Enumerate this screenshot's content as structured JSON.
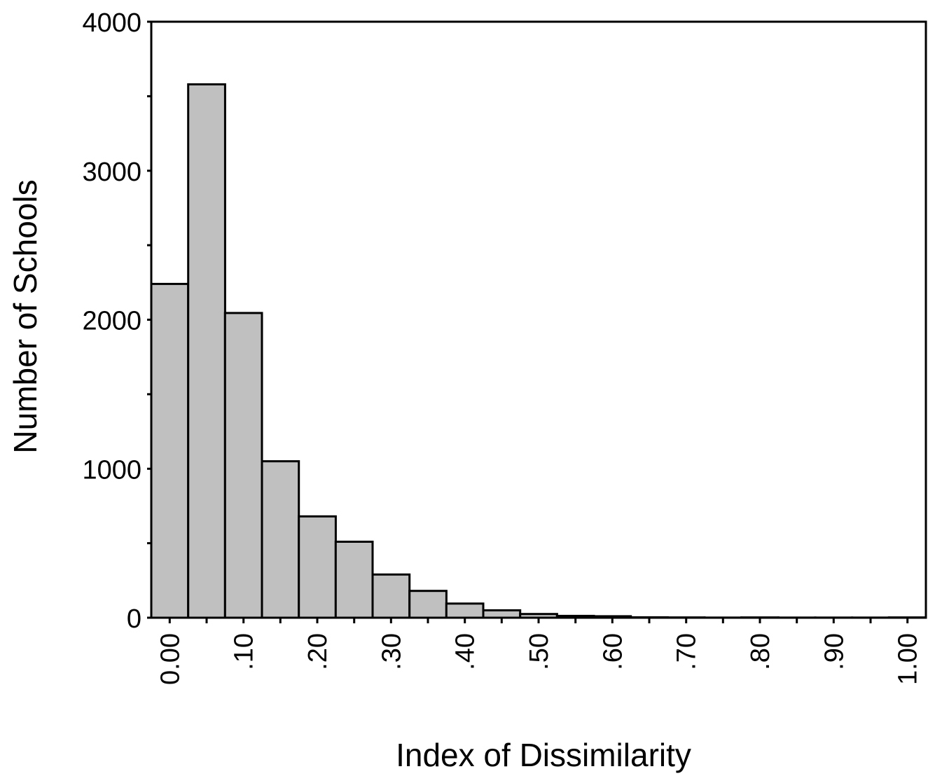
{
  "chart_data": {
    "type": "bar",
    "title": "",
    "xlabel": "Index of Dissimilarity",
    "ylabel": "Number of Schools",
    "categories": [
      "0.00",
      ".05",
      ".10",
      ".15",
      ".20",
      ".25",
      ".30",
      ".35",
      ".40",
      ".45",
      ".50",
      ".55",
      ".60",
      ".65",
      ".70",
      ".75",
      ".80",
      ".85",
      ".90",
      ".95",
      "1.00"
    ],
    "values": [
      2240,
      3580,
      2045,
      1050,
      680,
      510,
      290,
      180,
      95,
      50,
      25,
      12,
      10,
      3,
      2,
      1,
      2,
      1,
      1,
      1,
      2
    ],
    "ylim": [
      0,
      4000
    ],
    "xlim": [
      -0.025,
      1.025
    ],
    "yticks": [
      "0",
      "1000",
      "2000",
      "3000",
      "4000"
    ],
    "ytick_values": [
      0,
      1000,
      2000,
      3000,
      4000
    ],
    "xticks": [
      "0.00",
      ".10",
      ".20",
      ".30",
      ".40",
      ".50",
      ".60",
      ".70",
      ".80",
      ".90",
      "1.00"
    ],
    "xtick_values": [
      0.0,
      0.1,
      0.2,
      0.3,
      0.4,
      0.5,
      0.6,
      0.7,
      0.8,
      0.9,
      1.0
    ],
    "grid": false,
    "legend": "none",
    "bar_color": "#c0c0c0",
    "edge_color": "#000000"
  }
}
